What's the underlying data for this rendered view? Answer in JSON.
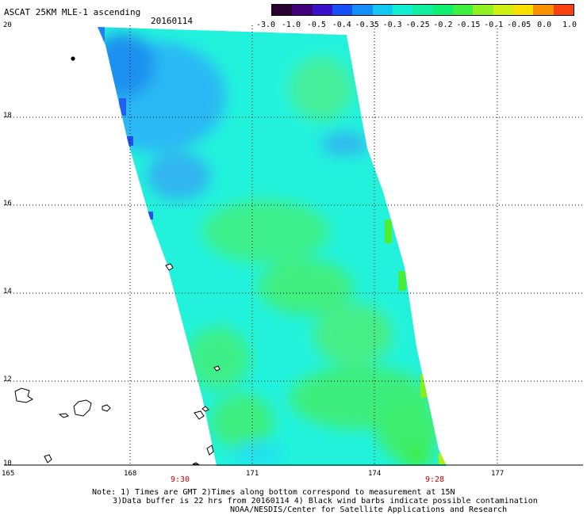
{
  "header": {
    "title": "ASCAT 25KM MLE-1 ascending",
    "date": "20160114"
  },
  "colorbar": {
    "colors": [
      "#2a0030",
      "#40007a",
      "#3a10c8",
      "#1850f8",
      "#1090f8",
      "#10c8f0",
      "#10f0d0",
      "#10f0a0",
      "#10f070",
      "#40f040",
      "#90f020",
      "#d0f010",
      "#f8e000",
      "#f89000",
      "#f84010"
    ],
    "labels": [
      "-3.0",
      "-1.0",
      "-0.5",
      "-0.4",
      "-0.35",
      "-0.3",
      "-0.25",
      "-0.2",
      "-0.15",
      "-0.1",
      "-0.05",
      "0.0",
      "1.0"
    ]
  },
  "axes": {
    "lat_labels": [
      "20",
      "18",
      "16",
      "14",
      "12",
      "10"
    ],
    "lon_labels": [
      "165",
      "168",
      "171",
      "174",
      "177"
    ]
  },
  "pass_times": {
    "start": "9:30",
    "end": "9:28"
  },
  "notes": {
    "line1": "Note: 1) Times are GMT 2)Times along bottom correspond to measurement at 15N",
    "line2": "3)Data buffer is 22 hrs from 20160114 4) Black wind barbs indicate possible contamination",
    "line3": "NOAA/NESDIS/Center for Satellite Applications and Research"
  },
  "swath_colors": {
    "cyan": "#22f2dc",
    "blue": "#20a0f0",
    "green": "#30ee80"
  }
}
